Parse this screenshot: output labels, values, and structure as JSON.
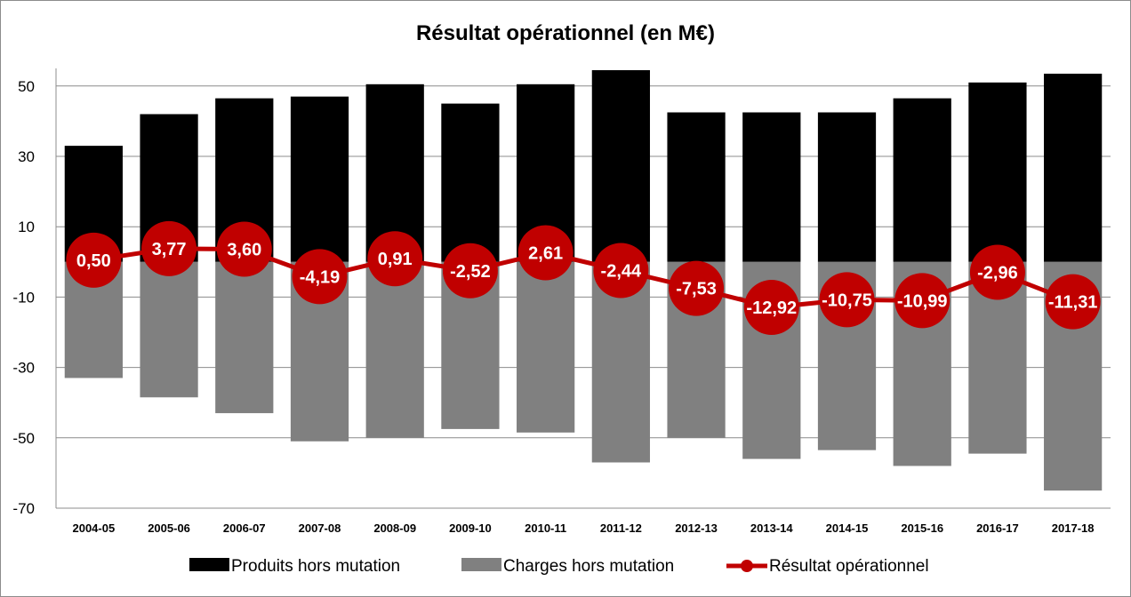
{
  "chart_data": {
    "type": "bar",
    "title": "Résultat opérationnel (en M€)",
    "xlabel": "",
    "ylabel": "",
    "ylim": [
      -70,
      55
    ],
    "yticks": [
      50,
      30,
      10,
      -10,
      -30,
      -50,
      -70
    ],
    "grid": true,
    "legend_position": "bottom",
    "categories": [
      "2004-05",
      "2005-06",
      "2006-07",
      "2007-08",
      "2008-09",
      "2009-10",
      "2010-11",
      "2011-12",
      "2012-13",
      "2013-14",
      "2014-15",
      "2015-16",
      "2016-17",
      "2017-18"
    ],
    "series": [
      {
        "name": "Produits hors mutation",
        "type": "bar",
        "color": "#000000",
        "values": [
          33,
          42,
          46.5,
          47,
          50.5,
          45,
          50.5,
          54.5,
          42.5,
          42.5,
          42.5,
          46.5,
          51,
          53.5
        ]
      },
      {
        "name": "Charges hors mutation",
        "type": "bar",
        "color": "#808080",
        "values": [
          -33,
          -38.5,
          -43,
          -51,
          -50,
          -47.5,
          -48.5,
          -57,
          -50,
          -56,
          -53.5,
          -58,
          -54.5,
          -65
        ]
      },
      {
        "name": "Résultat opérationnel",
        "type": "line",
        "color": "#c00000",
        "values": [
          0.5,
          3.77,
          3.6,
          -4.19,
          0.91,
          -2.52,
          2.61,
          -2.44,
          -7.53,
          -12.92,
          -10.75,
          -10.99,
          -2.96,
          -11.31
        ],
        "labels": [
          "0,50",
          "3,77",
          "3,60",
          "-4,19",
          "0,91",
          "-2,52",
          "2,61",
          "-2,44",
          "-7,53",
          "-12,92",
          "-10,75",
          "-10,99",
          "-2,96",
          "-11,31"
        ]
      }
    ]
  }
}
